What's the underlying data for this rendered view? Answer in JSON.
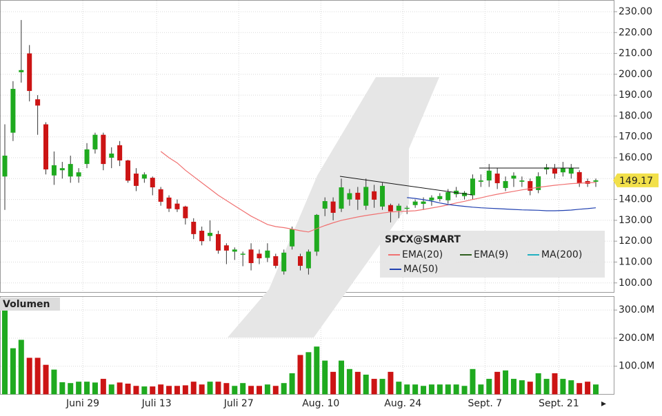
{
  "chart_data": [
    {
      "type": "candlestick",
      "title": "SPCX@SMART",
      "open": [
        151,
        172,
        201,
        210,
        188,
        176,
        151.5,
        154,
        151,
        151,
        157,
        164,
        171,
        160,
        166,
        158.7,
        152.4,
        150,
        150.4,
        144.9,
        140.9,
        138,
        136.6,
        129.3,
        125,
        122.5,
        123.4,
        118,
        115,
        113.5,
        116,
        114,
        112,
        112.8,
        105.5,
        117.5,
        112.8,
        107,
        115,
        135.6,
        139,
        135.6,
        140,
        143.2,
        137,
        143.9,
        136.6,
        137.3,
        134.6,
        135.5,
        137.3,
        137.9,
        139.6,
        140.2,
        139.6,
        142.5,
        141.6,
        142,
        148.5,
        149.1,
        152.4,
        145.5,
        150,
        148.5,
        148.8,
        144.5,
        154.4,
        154.8,
        153,
        152.4,
        153.1,
        148.8,
        148.5
      ],
      "high": [
        176,
        196.7,
        226,
        214,
        190,
        177,
        163,
        158,
        161,
        155,
        167,
        172,
        172,
        165,
        168,
        159,
        155,
        153,
        151,
        146,
        142,
        140,
        137,
        131,
        127,
        130,
        125,
        119,
        117,
        115,
        119,
        116,
        119,
        114,
        116,
        127,
        114,
        116,
        133,
        141,
        141,
        150,
        145,
        146,
        150,
        147,
        148,
        138,
        138,
        137,
        140,
        141,
        142,
        143,
        145,
        146,
        144,
        152,
        152,
        157,
        155,
        151,
        153,
        151,
        150,
        153,
        157,
        157,
        158,
        157,
        154,
        150,
        150
      ],
      "low": [
        135,
        168,
        196,
        187,
        171,
        152,
        147,
        150,
        148,
        148,
        155,
        162,
        154,
        155,
        156,
        148,
        144,
        148,
        142,
        137,
        134,
        134,
        128,
        121,
        118,
        120,
        114,
        109,
        111,
        108,
        106,
        109,
        110,
        107,
        104,
        116,
        106,
        104,
        113,
        132,
        130,
        134,
        137,
        135,
        135,
        136,
        135,
        129,
        131,
        133,
        136,
        135,
        137,
        139,
        138,
        141,
        140,
        140,
        146,
        146,
        145,
        144,
        146,
        146,
        142,
        143,
        152,
        150,
        151,
        150,
        146,
        146,
        146
      ],
      "close": [
        161,
        193,
        202,
        192,
        185,
        154.4,
        156.4,
        155,
        157,
        153,
        164,
        171,
        157,
        162,
        158.7,
        149,
        146.5,
        152,
        145.8,
        138.9,
        135.6,
        135.3,
        131,
        123.4,
        120,
        124,
        115.5,
        115.5,
        116,
        114,
        109.5,
        111.8,
        115.5,
        108.2,
        114.5,
        125.7,
        108.2,
        115,
        132.6,
        139.2,
        133.6,
        145.8,
        143,
        139.9,
        146,
        139.9,
        146.5,
        134.3,
        137,
        136,
        139,
        139,
        140.9,
        141.6,
        143.5,
        144.2,
        143.2,
        150,
        149.1,
        153.8,
        147.8,
        148.8,
        151.4,
        149.1,
        144.2,
        151.1,
        155.4,
        152.4,
        155.1,
        155.1,
        147.8,
        147.5,
        149.17
      ],
      "up_color": "#1faa1f",
      "down_color": "#cc1414",
      "last_price": 149.17,
      "series": [
        {
          "name": "EMA(20)",
          "color": "#f07070",
          "values": [
            null,
            null,
            null,
            null,
            null,
            null,
            null,
            null,
            null,
            null,
            null,
            null,
            null,
            null,
            null,
            null,
            null,
            null,
            null,
            163,
            160,
            157.5,
            154,
            151,
            148,
            145,
            142,
            139.5,
            137,
            134.5,
            132,
            130,
            128,
            127,
            126.5,
            125.8,
            125,
            124.4,
            126,
            127.5,
            128.8,
            130,
            130.8,
            131.6,
            132.3,
            132.9,
            133.5,
            134,
            134.2,
            134.4,
            134.6,
            135.2,
            135.9,
            136.6,
            137.4,
            138.3,
            139.1,
            140,
            140.8,
            141.7,
            142.5,
            143.2,
            143.9,
            144.6,
            145.2,
            145.8,
            146.3,
            146.8,
            147.2,
            147.6,
            147.8,
            148,
            148.2
          ]
        },
        {
          "name": "EMA(9)",
          "color": "#2e5e1e"
        },
        {
          "name": "MA(200)",
          "color": "#20b0c0"
        },
        {
          "name": "MA(50)",
          "color": "#2040b0",
          "values": [
            null,
            null,
            null,
            null,
            null,
            null,
            null,
            null,
            null,
            null,
            null,
            null,
            null,
            null,
            null,
            null,
            null,
            null,
            null,
            null,
            null,
            null,
            null,
            null,
            null,
            null,
            null,
            null,
            null,
            null,
            null,
            null,
            null,
            null,
            null,
            null,
            null,
            null,
            null,
            null,
            null,
            null,
            null,
            null,
            null,
            null,
            null,
            null,
            null,
            140.9,
            140.5,
            139.9,
            139.2,
            138.3,
            137.6,
            137.1,
            136.7,
            136.3,
            136,
            135.8,
            135.6,
            135.4,
            135.2,
            135,
            134.9,
            134.8,
            134.6,
            134.6,
            134.7,
            134.9,
            135.3,
            135.6,
            136
          ]
        }
      ],
      "ylim": [
        95.3,
        235.6
      ],
      "yticks": [
        {
          "value": 100,
          "label": "100.00"
        },
        {
          "value": 110,
          "label": "110.00"
        },
        {
          "value": 120,
          "label": "120.00"
        },
        {
          "value": 130,
          "label": "130.00"
        },
        {
          "value": 140,
          "label": "140.00"
        },
        {
          "value": 150,
          "label": "150.00"
        },
        {
          "value": 160,
          "label": "160.00"
        },
        {
          "value": 170,
          "label": "170.00"
        },
        {
          "value": 180,
          "label": "180.00"
        },
        {
          "value": 190,
          "label": "190.00"
        },
        {
          "value": 200,
          "label": "200.00"
        },
        {
          "value": 210,
          "label": "210.00"
        },
        {
          "value": 220,
          "label": "220.00"
        },
        {
          "value": 230,
          "label": "230.00"
        }
      ],
      "grid": true
    },
    {
      "type": "bar",
      "title": "Volumen",
      "categories": [
        null,
        null,
        null,
        null,
        null,
        null,
        null,
        null,
        null,
        null,
        "Juni 29",
        null,
        null,
        null,
        null,
        null,
        null,
        null,
        null,
        "Juli 13",
        null,
        null,
        null,
        null,
        null,
        null,
        null,
        null,
        null,
        "Juli 27",
        null,
        null,
        null,
        null,
        null,
        null,
        null,
        null,
        null,
        "Aug. 10",
        null,
        null,
        null,
        null,
        null,
        null,
        null,
        null,
        null,
        "Aug. 24",
        null,
        null,
        null,
        null,
        null,
        null,
        null,
        null,
        null,
        "Sept. 7",
        null,
        null,
        null,
        null,
        null,
        null,
        null,
        null,
        "Sept. 21",
        null,
        null,
        null,
        null
      ],
      "values": [
        332,
        164,
        194,
        130,
        130,
        105,
        88,
        43,
        40,
        45,
        45,
        42,
        55,
        35,
        42,
        38,
        30,
        28,
        28,
        35,
        30,
        30,
        32,
        45,
        35,
        45,
        45,
        40,
        30,
        40,
        30,
        30,
        35,
        30,
        40,
        75,
        140,
        150,
        170,
        120,
        80,
        120,
        90,
        80,
        70,
        55,
        55,
        80,
        45,
        35,
        35,
        30,
        35,
        35,
        35,
        35,
        30,
        90,
        35,
        55,
        80,
        85,
        55,
        50,
        45,
        75,
        55,
        75,
        55,
        50,
        40,
        45,
        35
      ],
      "ylim": [
        0,
        347
      ],
      "yticks": [
        {
          "value": 100,
          "label": "100.0M"
        },
        {
          "value": 200,
          "label": "200.0M"
        },
        {
          "value": 300,
          "label": "300.0M"
        }
      ],
      "grid": true
    }
  ]
}
